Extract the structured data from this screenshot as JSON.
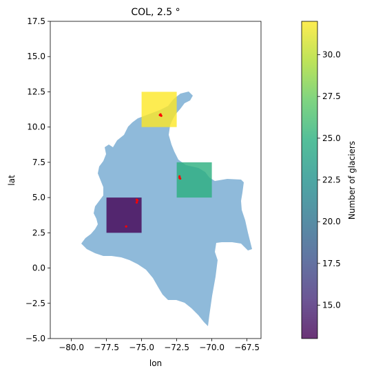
{
  "chart_data": {
    "type": "heatmap",
    "title": "COL, 2.5 °",
    "xlabel": "lon",
    "ylabel": "lat",
    "xlim": [
      -81.5,
      -66.5
    ],
    "ylim": [
      -5.0,
      17.5
    ],
    "xticks": [
      "−80.0",
      "−77.5",
      "−75.0",
      "−72.5",
      "−70.0",
      "−67.5"
    ],
    "yticks": [
      "−5.0",
      "−2.5",
      "0.0",
      "2.5",
      "5.0",
      "7.5",
      "10.0",
      "12.5",
      "15.0",
      "17.5"
    ],
    "cells": [
      {
        "lon_min": -75.0,
        "lat_min": 10.0,
        "size": 2.5,
        "count": 32
      },
      {
        "lon_min": -72.5,
        "lat_min": 5.0,
        "size": 2.5,
        "count": 25
      },
      {
        "lon_min": -77.5,
        "lat_min": 2.5,
        "size": 2.5,
        "count": 13
      }
    ],
    "glacier_points": [
      [
        -73.7,
        10.85
      ],
      [
        -73.6,
        10.8
      ],
      [
        -73.65,
        10.9
      ],
      [
        -72.3,
        6.4
      ],
      [
        -72.3,
        6.5
      ],
      [
        -72.25,
        6.35
      ],
      [
        -75.35,
        4.85
      ],
      [
        -75.35,
        4.65
      ],
      [
        -75.3,
        4.8
      ],
      [
        -76.1,
        2.95
      ]
    ],
    "colorbar": {
      "label": "Number of glaciers",
      "range": [
        13,
        32
      ],
      "ticks": [
        "15.0",
        "17.5",
        "20.0",
        "22.5",
        "25.0",
        "27.5",
        "30.0"
      ],
      "colormap": "viridis"
    },
    "colors": {
      "country_fill": "#8fbada",
      "glacier_points": "#ff0000"
    }
  }
}
